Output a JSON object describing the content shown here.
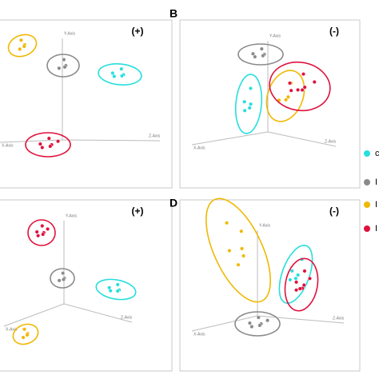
{
  "panels": [
    {
      "sign": "(+)",
      "axes": [
        "Y-Axis",
        "Z-Axis",
        "X-Axis"
      ]
    },
    {
      "letter": "B",
      "sign": "(-)",
      "axes": [
        "Y-Axis",
        "Z-Axis",
        "X-Axis"
      ]
    },
    {
      "sign": "(+)",
      "axes": [
        "Y-Axis",
        "Z-Axis",
        "X-Axis"
      ]
    },
    {
      "letter": "D",
      "sign": "(-)",
      "axes": [
        "Y-Axis",
        "Z-Axis",
        "X-Axis"
      ]
    }
  ],
  "legend": [
    {
      "label": "c",
      "color": "#27dede"
    },
    {
      "label": "I",
      "color": "#8a8a8a"
    },
    {
      "label": "I",
      "color": "#f0b800"
    },
    {
      "label": "I",
      "color": "#e0103c"
    }
  ]
}
